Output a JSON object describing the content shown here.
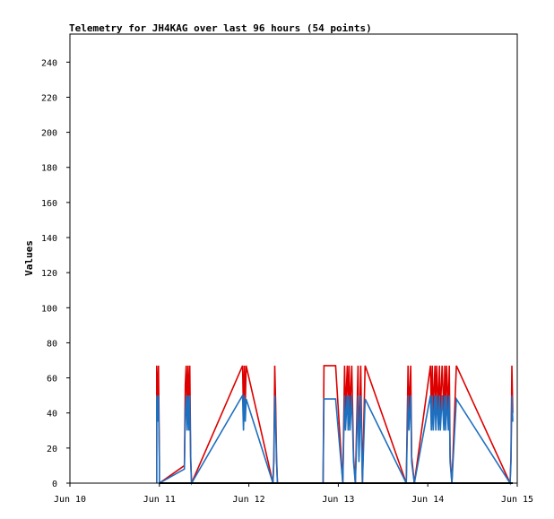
{
  "chart_data": {
    "type": "line",
    "title": "Telemetry for JH4KAG over last 96 hours (54 points)",
    "xlabel": "",
    "ylabel": "Values",
    "x_range": [
      "Jun 10",
      "Jun 15"
    ],
    "xticks": [
      "Jun 10",
      "Jun 11",
      "Jun 12",
      "Jun 13",
      "Jun 14",
      "Jun 15"
    ],
    "ylim": [
      0,
      256
    ],
    "yticks": [
      0,
      20,
      40,
      60,
      80,
      100,
      120,
      140,
      160,
      180,
      200,
      220,
      240
    ],
    "grid": false,
    "legend": "none",
    "colors": {
      "red": "#dd0000",
      "blue": "#1f6fbf",
      "black": "#000000"
    },
    "series": [
      {
        "color": "#dd0000",
        "points": [
          [
            10.97,
            0
          ],
          [
            10.97,
            15
          ],
          [
            10.97,
            67
          ],
          [
            10.98,
            45
          ],
          [
            10.99,
            67
          ],
          [
            11.0,
            15
          ],
          [
            11.0,
            0
          ],
          [
            11.28,
            10
          ],
          [
            11.29,
            56
          ],
          [
            11.3,
            67
          ],
          [
            11.31,
            40
          ],
          [
            11.32,
            67
          ],
          [
            11.33,
            40
          ],
          [
            11.34,
            67
          ],
          [
            11.35,
            15
          ],
          [
            11.36,
            0
          ],
          [
            11.93,
            67
          ],
          [
            11.94,
            40
          ],
          [
            11.95,
            67
          ],
          [
            11.96,
            45
          ],
          [
            11.97,
            67
          ],
          [
            12.27,
            0
          ],
          [
            12.28,
            15
          ],
          [
            12.29,
            67
          ],
          [
            12.3,
            45
          ],
          [
            12.31,
            15
          ],
          [
            12.32,
            0
          ],
          [
            12.83,
            0
          ],
          [
            12.84,
            67
          ],
          [
            12.93,
            67
          ],
          [
            12.97,
            67
          ],
          [
            13.05,
            0
          ],
          [
            13.07,
            67
          ],
          [
            13.08,
            40
          ],
          [
            13.1,
            67
          ],
          [
            13.11,
            40
          ],
          [
            13.12,
            67
          ],
          [
            13.13,
            40
          ],
          [
            13.15,
            67
          ],
          [
            13.17,
            15
          ],
          [
            13.19,
            0
          ],
          [
            13.22,
            67
          ],
          [
            13.23,
            15
          ],
          [
            13.25,
            67
          ],
          [
            13.27,
            0
          ],
          [
            13.3,
            67
          ],
          [
            13.76,
            0
          ],
          [
            13.78,
            67
          ],
          [
            13.79,
            40
          ],
          [
            13.81,
            67
          ],
          [
            13.82,
            15
          ],
          [
            13.85,
            0
          ],
          [
            14.03,
            67
          ],
          [
            14.04,
            40
          ],
          [
            14.05,
            67
          ],
          [
            14.06,
            40
          ],
          [
            14.08,
            67
          ],
          [
            14.09,
            40
          ],
          [
            14.1,
            67
          ],
          [
            14.12,
            40
          ],
          [
            14.13,
            67
          ],
          [
            14.14,
            40
          ],
          [
            14.16,
            67
          ],
          [
            14.18,
            40
          ],
          [
            14.19,
            67
          ],
          [
            14.2,
            40
          ],
          [
            14.21,
            67
          ],
          [
            14.23,
            40
          ],
          [
            14.24,
            67
          ],
          [
            14.25,
            15
          ],
          [
            14.27,
            0
          ],
          [
            14.32,
            67
          ],
          [
            14.92,
            0
          ],
          [
            14.93,
            15
          ],
          [
            14.94,
            67
          ],
          [
            14.95,
            40
          ]
        ]
      },
      {
        "color": "#1f6fbf",
        "points": [
          [
            10.97,
            0
          ],
          [
            10.97,
            12
          ],
          [
            10.97,
            50
          ],
          [
            10.98,
            35
          ],
          [
            10.99,
            50
          ],
          [
            11.0,
            12
          ],
          [
            11.0,
            0
          ],
          [
            11.28,
            8
          ],
          [
            11.29,
            40
          ],
          [
            11.3,
            50
          ],
          [
            11.31,
            30
          ],
          [
            11.32,
            50
          ],
          [
            11.33,
            30
          ],
          [
            11.34,
            50
          ],
          [
            11.35,
            12
          ],
          [
            11.36,
            0
          ],
          [
            11.93,
            50
          ],
          [
            11.94,
            30
          ],
          [
            11.95,
            50
          ],
          [
            11.96,
            35
          ],
          [
            11.97,
            48
          ],
          [
            12.27,
            0
          ],
          [
            12.28,
            12
          ],
          [
            12.29,
            50
          ],
          [
            12.3,
            35
          ],
          [
            12.31,
            12
          ],
          [
            12.32,
            0
          ],
          [
            12.83,
            0
          ],
          [
            12.84,
            48
          ],
          [
            12.93,
            48
          ],
          [
            12.97,
            48
          ],
          [
            13.05,
            0
          ],
          [
            13.07,
            50
          ],
          [
            13.08,
            30
          ],
          [
            13.1,
            50
          ],
          [
            13.11,
            30
          ],
          [
            13.12,
            50
          ],
          [
            13.13,
            30
          ],
          [
            13.15,
            50
          ],
          [
            13.17,
            12
          ],
          [
            13.19,
            0
          ],
          [
            13.22,
            50
          ],
          [
            13.23,
            12
          ],
          [
            13.25,
            50
          ],
          [
            13.27,
            0
          ],
          [
            13.3,
            48
          ],
          [
            13.76,
            0
          ],
          [
            13.78,
            50
          ],
          [
            13.79,
            30
          ],
          [
            13.81,
            50
          ],
          [
            13.82,
            12
          ],
          [
            13.85,
            0
          ],
          [
            14.03,
            50
          ],
          [
            14.04,
            30
          ],
          [
            14.05,
            50
          ],
          [
            14.06,
            30
          ],
          [
            14.08,
            50
          ],
          [
            14.09,
            30
          ],
          [
            14.1,
            50
          ],
          [
            14.12,
            30
          ],
          [
            14.13,
            50
          ],
          [
            14.14,
            30
          ],
          [
            14.16,
            50
          ],
          [
            14.18,
            30
          ],
          [
            14.19,
            50
          ],
          [
            14.2,
            30
          ],
          [
            14.21,
            50
          ],
          [
            14.23,
            30
          ],
          [
            14.24,
            50
          ],
          [
            14.25,
            12
          ],
          [
            14.27,
            0
          ],
          [
            14.32,
            48
          ],
          [
            14.92,
            0
          ],
          [
            14.93,
            12
          ],
          [
            14.94,
            50
          ],
          [
            14.95,
            35
          ]
        ]
      },
      {
        "color": "#000000",
        "points": [
          [
            11.0,
            0
          ],
          [
            14.95,
            0
          ]
        ]
      }
    ]
  }
}
